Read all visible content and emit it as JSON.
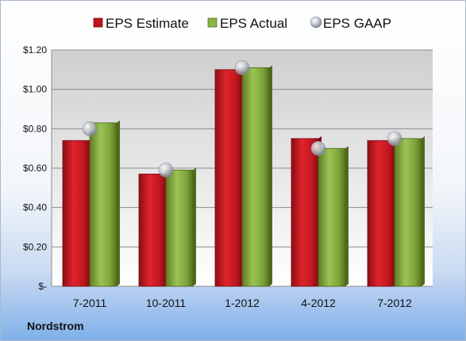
{
  "brand": "Nordstrom",
  "chart_data": {
    "type": "bar",
    "categories": [
      "7-2011",
      "10-2011",
      "1-2012",
      "4-2012",
      "7-2012"
    ],
    "series": [
      {
        "name": "EPS Estimate",
        "kind": "bar",
        "color": "#c0141e",
        "values": [
          0.74,
          0.57,
          1.1,
          0.75,
          0.74
        ]
      },
      {
        "name": "EPS Actual",
        "kind": "bar",
        "color": "#7fa63a",
        "values": [
          0.83,
          0.59,
          1.11,
          0.7,
          0.75
        ]
      },
      {
        "name": "EPS GAAP",
        "kind": "marker",
        "color": "#b8c0cc",
        "values": [
          0.8,
          0.59,
          1.11,
          0.7,
          0.75
        ]
      }
    ],
    "ylim": [
      0,
      1.2
    ],
    "yticks": [
      {
        "value": 0,
        "label": "$-"
      },
      {
        "value": 0.2,
        "label": "$0.20"
      },
      {
        "value": 0.4,
        "label": "$0.40"
      },
      {
        "value": 0.6,
        "label": "$0.60"
      },
      {
        "value": 0.8,
        "label": "$0.80"
      },
      {
        "value": 1.0,
        "label": "$1.00"
      },
      {
        "value": 1.2,
        "label": "$1.20"
      }
    ],
    "grid": true,
    "legend_position": "top"
  }
}
